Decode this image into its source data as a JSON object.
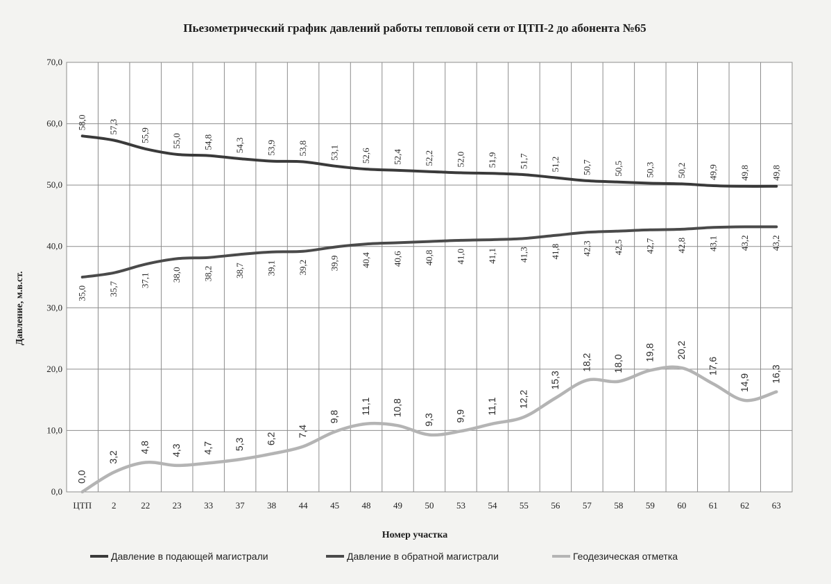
{
  "chart_data": {
    "type": "line",
    "title": "Пьезометрический график давлений работы тепловой сети от ЦТП-2 до абонента №65",
    "xlabel": "Номер участка",
    "ylabel": "Давление, м.в.ст.",
    "ylim": [
      0,
      70
    ],
    "yticks": [
      "0,0",
      "10,0",
      "20,0",
      "30,0",
      "40,0",
      "50,0",
      "60,0",
      "70,0"
    ],
    "grid": true,
    "legend_position": "bottom",
    "categories": [
      "ЦТП",
      "2",
      "22",
      "23",
      "33",
      "37",
      "38",
      "44",
      "45",
      "48",
      "49",
      "50",
      "53",
      "54",
      "55",
      "56",
      "57",
      "58",
      "59",
      "60",
      "61",
      "62",
      "63"
    ],
    "series": [
      {
        "name": "Давление в подающей магистрали",
        "color": "#3a3a3a",
        "values": [
          58.0,
          57.3,
          55.9,
          55.0,
          54.8,
          54.3,
          53.9,
          53.8,
          53.1,
          52.6,
          52.4,
          52.2,
          52.0,
          51.9,
          51.7,
          51.2,
          50.7,
          50.5,
          50.3,
          50.2,
          49.9,
          49.8,
          49.8
        ],
        "labels": [
          "58,0",
          "57,3",
          "55,9",
          "55,0",
          "54,8",
          "54,3",
          "53,9",
          "53,8",
          "53,1",
          "52,6",
          "52,4",
          "52,2",
          "52,0",
          "51,9",
          "51,7",
          "51,2",
          "50,7",
          "50,5",
          "50,3",
          "50,2",
          "49,9",
          "49,8",
          "49,8"
        ],
        "render": {
          "y": [
            58.0,
            57.3,
            55.9,
            55.0,
            54.8,
            54.3,
            53.9,
            53.8,
            53.1,
            52.6,
            52.4,
            52.2,
            52.0,
            51.9,
            51.7,
            51.2,
            50.7,
            50.5,
            50.3,
            50.2,
            49.9,
            49.8,
            49.8
          ]
        }
      },
      {
        "name": "Давление в обратной магистрали",
        "color": "#4a4a4a",
        "values": [
          35.0,
          35.7,
          37.1,
          38.0,
          38.2,
          38.7,
          39.1,
          39.2,
          39.9,
          40.4,
          40.6,
          40.8,
          41.0,
          41.1,
          41.3,
          41.8,
          42.3,
          42.5,
          42.7,
          42.8,
          43.1,
          43.2,
          43.2
        ],
        "labels": [
          "35,0",
          "35,7",
          "37,1",
          "38,0",
          "38,2",
          "38,7",
          "39,1",
          "39,2",
          "39,9",
          "40,4",
          "40,6",
          "40,8",
          "41,0",
          "41,1",
          "41,3",
          "41,8",
          "42,3",
          "42,5",
          "42,7",
          "42,8",
          "43,1",
          "43,2",
          "43,2"
        ]
      },
      {
        "name": "Геодезическая отметка",
        "color": "#b4b4b4",
        "values": [
          0.0,
          3.2,
          4.8,
          4.3,
          4.7,
          5.3,
          6.2,
          7.4,
          9.8,
          11.1,
          10.8,
          9.3,
          9.9,
          11.1,
          12.2,
          15.3,
          18.2,
          18.0,
          19.8,
          20.2,
          17.6,
          14.9,
          16.3
        ],
        "labels": [
          "0,0",
          "3,2",
          "4,8",
          "4,3",
          "4,7",
          "5,3",
          "6,2",
          "7,4",
          "9,8",
          "11,1",
          "10,8",
          "9,3",
          "9,9",
          "11,1",
          "12,2",
          "15,3",
          "18,2",
          "18,0",
          "19,8",
          "20,2",
          "17,6",
          "14,9",
          "16,3"
        ]
      }
    ]
  }
}
